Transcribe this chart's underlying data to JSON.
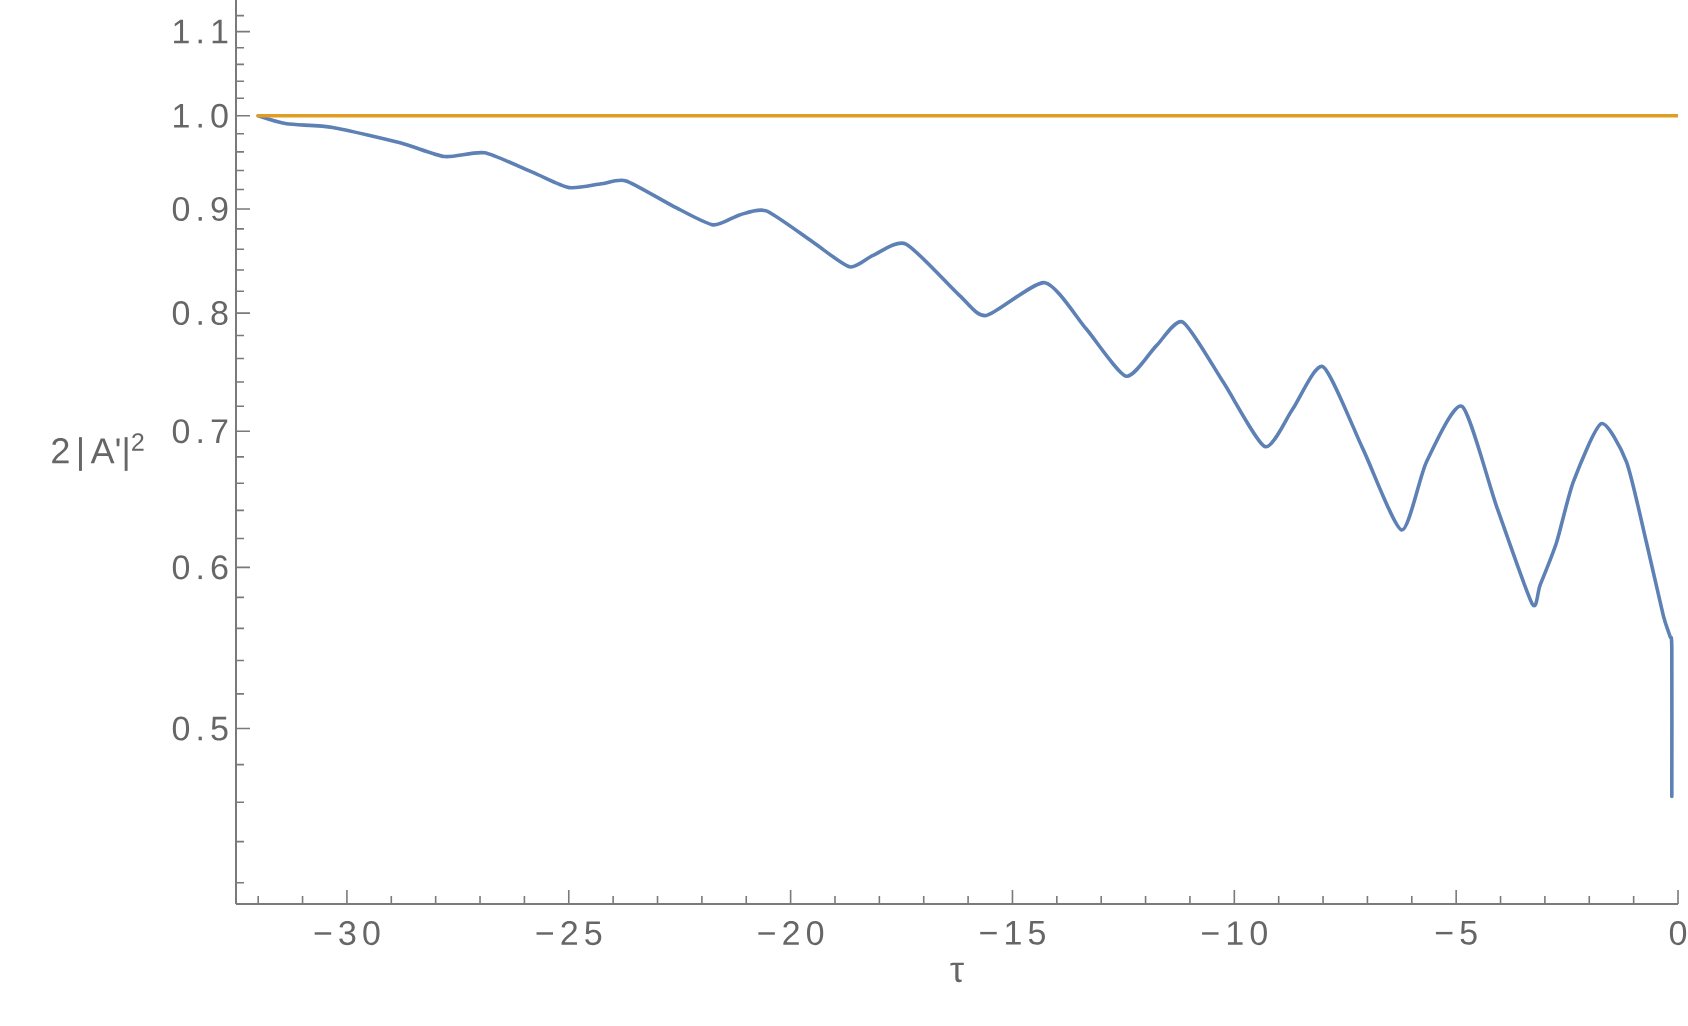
{
  "chart_data": {
    "type": "line",
    "xlabel": "τ",
    "ylabel": "2|A'|$^{2}$",
    "log": "y",
    "xlim": [
      -32.5,
      0
    ],
    "ylim": [
      0.41,
      1.14
    ],
    "xticks": [
      {
        "value": -32,
        "label": null
      },
      {
        "value": -31,
        "label": null
      },
      {
        "value": -30,
        "label": "−30"
      },
      {
        "value": -29,
        "label": null
      },
      {
        "value": -28,
        "label": null
      },
      {
        "value": -27,
        "label": null
      },
      {
        "value": -26,
        "label": null
      },
      {
        "value": -25,
        "label": "−25"
      },
      {
        "value": -24,
        "label": null
      },
      {
        "value": -23,
        "label": null
      },
      {
        "value": -22,
        "label": null
      },
      {
        "value": -21,
        "label": null
      },
      {
        "value": -20,
        "label": "−20"
      },
      {
        "value": -19,
        "label": null
      },
      {
        "value": -18,
        "label": null
      },
      {
        "value": -17,
        "label": null
      },
      {
        "value": -16,
        "label": null
      },
      {
        "value": -15,
        "label": "−15"
      },
      {
        "value": -14,
        "label": null
      },
      {
        "value": -13,
        "label": null
      },
      {
        "value": -12,
        "label": null
      },
      {
        "value": -11,
        "label": null
      },
      {
        "value": -10,
        "label": "−10"
      },
      {
        "value": -9,
        "label": null
      },
      {
        "value": -8,
        "label": null
      },
      {
        "value": -7,
        "label": null
      },
      {
        "value": -6,
        "label": null
      },
      {
        "value": -5,
        "label": "−5"
      },
      {
        "value": -4,
        "label": null
      },
      {
        "value": -3,
        "label": null
      },
      {
        "value": -2,
        "label": null
      },
      {
        "value": -1,
        "label": null
      },
      0
    ],
    "yticks": [
      {
        "value": 0.42,
        "label": null
      },
      {
        "value": 0.44,
        "label": null
      },
      {
        "value": 0.46,
        "label": null
      },
      {
        "value": 0.48,
        "label": null
      },
      0.5,
      {
        "value": 0.52,
        "label": null
      },
      {
        "value": 0.54,
        "label": null
      },
      {
        "value": 0.56,
        "label": null
      },
      {
        "value": 0.58,
        "label": null
      },
      0.6,
      {
        "value": 0.62,
        "label": null
      },
      {
        "value": 0.64,
        "label": null
      },
      {
        "value": 0.66,
        "label": null
      },
      {
        "value": 0.68,
        "label": null
      },
      0.7,
      {
        "value": 0.72,
        "label": null
      },
      {
        "value": 0.74,
        "label": null
      },
      {
        "value": 0.76,
        "label": null
      },
      {
        "value": 0.78,
        "label": null
      },
      0.8,
      {
        "value": 0.82,
        "label": null
      },
      {
        "value": 0.84,
        "label": null
      },
      {
        "value": 0.86,
        "label": null
      },
      {
        "value": 0.88,
        "label": null
      },
      0.9,
      {
        "value": 0.92,
        "label": null
      },
      {
        "value": 0.94,
        "label": null
      },
      {
        "value": 0.96,
        "label": null
      },
      {
        "value": 0.98,
        "label": null
      },
      {
        "value": 1,
        "label": "1.0"
      },
      {
        "value": 1.02,
        "label": null
      },
      {
        "value": 1.04,
        "label": null
      },
      {
        "value": 1.06,
        "label": null
      },
      {
        "value": 1.08,
        "label": null
      },
      1.1,
      {
        "value": 1.12,
        "label": null
      }
    ],
    "series": [
      {
        "color": "#5e81b5",
        "x": [
          -32,
          -31.36,
          -30.32,
          -28.8,
          -27.8,
          -26.9,
          -25.81,
          -24.99,
          -24.27,
          -23.71,
          -22.65,
          -21.75,
          -21.15,
          -20.55,
          -19.5,
          -18.67,
          -18.14,
          -17.4,
          -16.19,
          -15.59,
          -14.27,
          -13.34,
          -12.44,
          -11.76,
          -11.16,
          -10.25,
          -9.31,
          -8.68,
          -8.0,
          -7.1,
          -6.23,
          -5.67,
          -4.87,
          -4.09,
          -3.29,
          -3.11,
          -2.74,
          -2.36,
          -1.73,
          -1.16,
          -0.71,
          -0.33,
          -0.18,
          -0.14,
          -0.14
        ],
        "values": [
          1.0,
          0.991,
          0.987,
          0.97,
          0.955,
          0.959,
          0.938,
          0.922,
          0.926,
          0.929,
          0.903,
          0.884,
          0.894,
          0.898,
          0.867,
          0.843,
          0.854,
          0.865,
          0.816,
          0.798,
          0.828,
          0.786,
          0.745,
          0.771,
          0.792,
          0.74,
          0.688,
          0.718,
          0.753,
          0.686,
          0.626,
          0.676,
          0.72,
          0.643,
          0.576,
          0.588,
          0.617,
          0.661,
          0.706,
          0.676,
          0.617,
          0.568,
          0.555,
          0.547,
          0.463
        ]
      },
      {
        "color": "#e19c24",
        "x": [
          -32,
          0
        ],
        "values": [
          1,
          1
        ]
      }
    ]
  }
}
